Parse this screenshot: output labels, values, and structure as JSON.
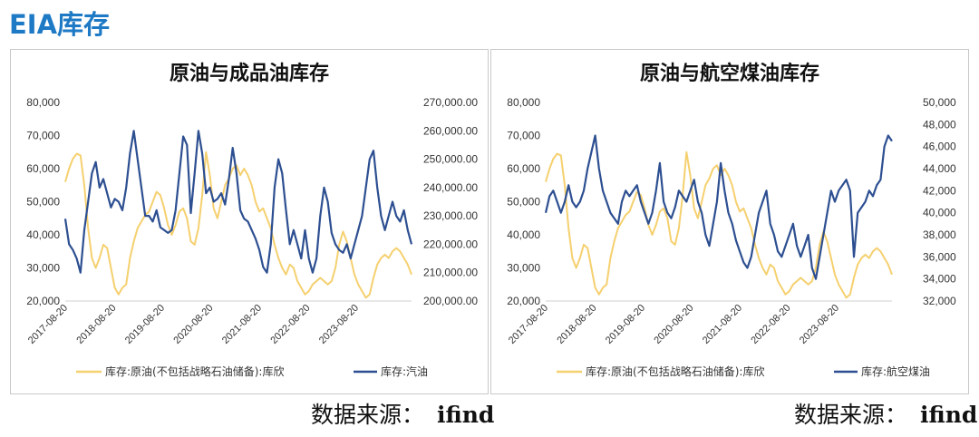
{
  "page": {
    "title": "EIA库存"
  },
  "source": {
    "label": "数据来源：",
    "brand": "ifind"
  },
  "chart_data": [
    {
      "type": "line",
      "title": "原油与成品油库存",
      "x_ticks": [
        "2017-08-20",
        "2018-08-20",
        "2019-08-20",
        "2020-08-20",
        "2021-08-20",
        "2022-08-20",
        "2023-08-20"
      ],
      "y_left": {
        "ticks": [
          "80,000",
          "70,000",
          "60,000",
          "50,000",
          "40,000",
          "30,000",
          "20,000"
        ],
        "range": [
          20000,
          80000
        ]
      },
      "y_right": {
        "ticks": [
          "270,000.00",
          "260,000.00",
          "250,000.00",
          "240,000.00",
          "230,000.00",
          "220,000.00",
          "210,000.00",
          "200,000.00"
        ],
        "range": [
          200000,
          270000
        ]
      },
      "legend_position": "bottom",
      "series": [
        {
          "name": "库存:原油(不包括战略石油储备):库欣",
          "axis": "left",
          "color": "#f5d06f",
          "values": [
            56000,
            60000,
            63000,
            64500,
            64000,
            55000,
            42000,
            33000,
            30000,
            33000,
            37000,
            36000,
            30000,
            24000,
            22000,
            24000,
            25000,
            33000,
            38000,
            42000,
            44000,
            46000,
            47000,
            50000,
            53000,
            52000,
            48000,
            43000,
            40000,
            43000,
            47000,
            48000,
            45000,
            38000,
            37000,
            42000,
            52000,
            65000,
            58000,
            48000,
            45000,
            50000,
            55000,
            57000,
            60000,
            61000,
            58000,
            60000,
            58000,
            55000,
            50000,
            47000,
            48000,
            45000,
            42000,
            37000,
            33000,
            30000,
            28000,
            31000,
            30000,
            26000,
            24000,
            22000,
            23000,
            25000,
            26000,
            27000,
            26000,
            25000,
            26000,
            30000,
            37000,
            41000,
            38000,
            33000,
            28000,
            25000,
            23000,
            21000,
            22000,
            27000,
            31000,
            33000,
            34000,
            33000,
            35000,
            36000,
            35000,
            33000,
            31000,
            28000
          ]
        },
        {
          "name": "库存:汽油",
          "axis": "right",
          "color": "#2d4f91",
          "values": [
            229000,
            220000,
            218000,
            215000,
            210000,
            225000,
            235000,
            245000,
            249000,
            240000,
            243000,
            238000,
            233000,
            236000,
            235000,
            232000,
            240000,
            252000,
            260000,
            250000,
            240000,
            230000,
            230000,
            228000,
            232000,
            226000,
            225000,
            224000,
            225000,
            232000,
            245000,
            258000,
            255000,
            231000,
            245000,
            260000,
            252000,
            238000,
            240000,
            235000,
            236000,
            238000,
            234000,
            243000,
            254000,
            245000,
            232000,
            229000,
            228000,
            225000,
            222000,
            218000,
            212000,
            210000,
            220000,
            240000,
            250000,
            245000,
            232000,
            220000,
            225000,
            220000,
            215000,
            225000,
            215000,
            210000,
            215000,
            230000,
            240000,
            235000,
            224000,
            220000,
            218000,
            217000,
            220000,
            215000,
            220000,
            225000,
            230000,
            240000,
            250000,
            253000,
            240000,
            230000,
            225000,
            230000,
            235000,
            230000,
            228000,
            232000,
            225000,
            220000
          ]
        }
      ]
    },
    {
      "type": "line",
      "title": "原油与航空煤油库存",
      "x_ticks": [
        "2017-08-20",
        "2018-08-20",
        "2019-08-20",
        "2020-08-20",
        "2021-08-20",
        "2022-08-20",
        "2023-08-20"
      ],
      "y_left": {
        "ticks": [
          "80,000",
          "70,000",
          "60,000",
          "50,000",
          "40,000",
          "30,000",
          "20,000"
        ],
        "range": [
          20000,
          80000
        ]
      },
      "y_right": {
        "ticks": [
          "50,000",
          "48,000",
          "46,000",
          "44,000",
          "42,000",
          "40,000",
          "38,000",
          "36,000",
          "34,000",
          "32,000"
        ],
        "range": [
          32000,
          50000
        ]
      },
      "legend_position": "bottom",
      "series": [
        {
          "name": "库存:原油(不包括战略石油储备):库欣",
          "axis": "left",
          "color": "#f5d06f",
          "values": [
            56000,
            60000,
            63000,
            64500,
            64000,
            55000,
            42000,
            33000,
            30000,
            33000,
            37000,
            36000,
            30000,
            24000,
            22000,
            24000,
            25000,
            33000,
            38000,
            42000,
            44000,
            46000,
            47000,
            50000,
            53000,
            52000,
            48000,
            43000,
            40000,
            43000,
            47000,
            48000,
            45000,
            38000,
            37000,
            42000,
            52000,
            65000,
            58000,
            48000,
            45000,
            50000,
            55000,
            57000,
            60000,
            61000,
            58000,
            60000,
            58000,
            55000,
            50000,
            47000,
            48000,
            45000,
            42000,
            37000,
            33000,
            30000,
            28000,
            31000,
            30000,
            26000,
            24000,
            22000,
            23000,
            25000,
            26000,
            27000,
            26000,
            25000,
            26000,
            30000,
            37000,
            41000,
            38000,
            33000,
            28000,
            25000,
            23000,
            21000,
            22000,
            27000,
            31000,
            33000,
            34000,
            33000,
            35000,
            36000,
            35000,
            33000,
            31000,
            28000
          ]
        },
        {
          "name": "库存:航空煤油",
          "axis": "right",
          "color": "#2d4f91",
          "values": [
            40000,
            41500,
            42000,
            41000,
            40000,
            41000,
            42500,
            41000,
            40500,
            41000,
            42000,
            44000,
            45500,
            47000,
            44000,
            42000,
            41000,
            40000,
            39500,
            39000,
            41000,
            42000,
            41500,
            42000,
            42500,
            41000,
            40000,
            39000,
            40000,
            42000,
            44500,
            41000,
            40000,
            39500,
            40500,
            42000,
            41500,
            41000,
            42000,
            43000,
            41000,
            40000,
            38000,
            37000,
            39000,
            41000,
            44500,
            42000,
            40000,
            39000,
            37500,
            36500,
            35500,
            35000,
            36000,
            38000,
            40000,
            41000,
            42000,
            39000,
            38000,
            36500,
            36000,
            37000,
            38000,
            39000,
            37000,
            36000,
            37000,
            38000,
            35000,
            34000,
            36000,
            38000,
            40000,
            42000,
            41000,
            42000,
            42500,
            43000,
            42000,
            36000,
            40000,
            40500,
            41000,
            42000,
            41500,
            42500,
            43000,
            46000,
            47000,
            46500
          ]
        }
      ]
    }
  ]
}
